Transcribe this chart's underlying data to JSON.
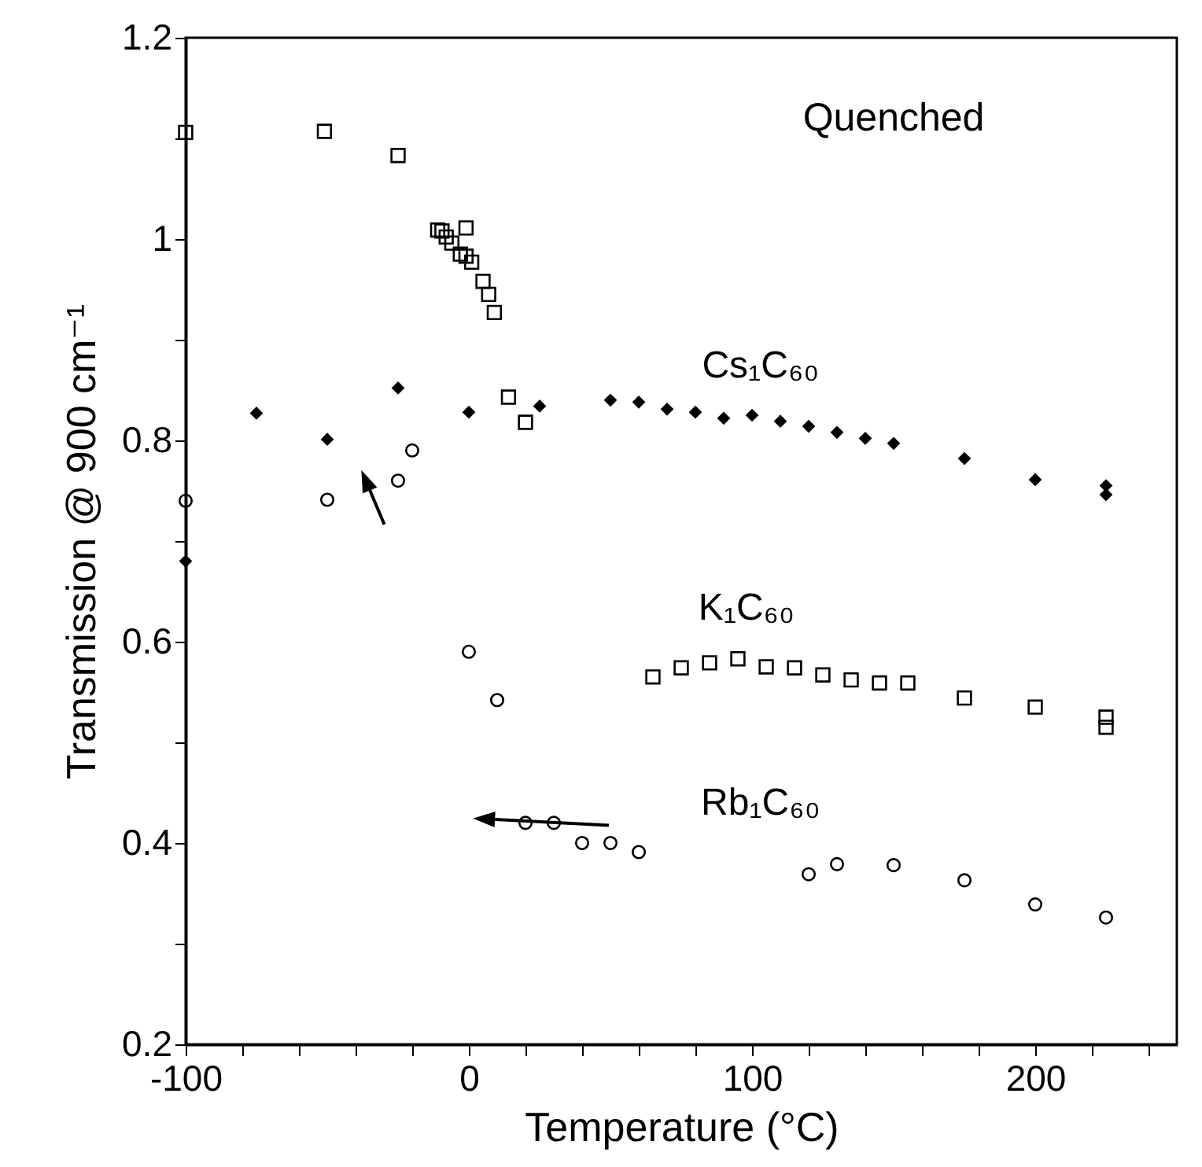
{
  "chart_data": {
    "type": "scatter",
    "xlabel": "Temperature (°C)",
    "ylabel": "Transmission @ 900 cm⁻¹",
    "annotations": [
      "Quenched"
    ],
    "xlim": [
      -100,
      250
    ],
    "ylim": [
      0.2,
      1.2
    ],
    "xticks": [
      -100,
      {
        "value": -80,
        "label": null
      },
      {
        "value": -60,
        "label": null
      },
      {
        "value": -40,
        "label": null
      },
      {
        "value": -20,
        "label": null
      },
      0,
      {
        "value": 20,
        "label": null
      },
      {
        "value": 40,
        "label": null
      },
      {
        "value": 60,
        "label": null
      },
      {
        "value": 80,
        "label": null
      },
      100,
      {
        "value": 120,
        "label": null
      },
      {
        "value": 140,
        "label": null
      },
      {
        "value": 160,
        "label": null
      },
      {
        "value": 180,
        "label": null
      },
      200,
      {
        "value": 220,
        "label": null
      },
      {
        "value": 240,
        "label": null
      }
    ],
    "yticks": [
      0.2,
      {
        "value": 0.3,
        "label": null
      },
      0.4,
      {
        "value": 0.5,
        "label": null
      },
      0.6,
      {
        "value": 0.7,
        "label": null
      },
      0.8,
      {
        "value": 0.9,
        "label": null
      },
      1,
      {
        "value": 1.1,
        "label": null
      },
      1.2
    ],
    "series": [
      {
        "name": "Cs₁C₆₀",
        "color": "#000000",
        "marker": "diamond",
        "x": [
          -100,
          -75,
          -50,
          -25,
          0,
          25,
          50,
          60,
          70,
          80,
          90,
          100,
          110,
          120,
          130,
          140,
          150,
          175,
          200,
          225,
          225
        ],
        "values": [
          0.68,
          0.827,
          0.801,
          0.852,
          0.828,
          0.834,
          0.84,
          0.838,
          0.831,
          0.828,
          0.822,
          0.825,
          0.819,
          0.814,
          0.808,
          0.802,
          0.797,
          0.782,
          0.761,
          0.755,
          0.746
        ]
      },
      {
        "name": "K₁C₆₀",
        "color": "#000000",
        "marker": "square",
        "x": [
          -100,
          -51,
          -25,
          -11,
          -9.5,
          -8,
          -6,
          -1,
          -3,
          -1,
          1,
          5,
          7,
          9,
          14,
          20,
          65,
          75,
          85,
          95,
          105,
          115,
          125,
          135,
          145,
          155,
          175,
          200,
          225,
          225
        ],
        "values": [
          1.106,
          1.107,
          1.083,
          1.009,
          1.008,
          1.002,
          0.996,
          1.011,
          0.985,
          0.983,
          0.977,
          0.958,
          0.945,
          0.927,
          0.843,
          0.818,
          0.565,
          0.574,
          0.579,
          0.583,
          0.575,
          0.574,
          0.567,
          0.562,
          0.559,
          0.559,
          0.544,
          0.535,
          0.525,
          0.515
        ]
      },
      {
        "name": "Rb₁C₆₀",
        "color": "#000000",
        "marker": "circle",
        "x": [
          -100,
          -50,
          -25,
          -20,
          0,
          10,
          20,
          30,
          40,
          50,
          60,
          120,
          130,
          150,
          175,
          200,
          225
        ],
        "values": [
          0.74,
          0.741,
          0.76,
          0.79,
          0.59,
          0.542,
          0.42,
          0.42,
          0.4,
          0.4,
          0.391,
          0.369,
          0.379,
          0.378,
          0.363,
          0.339,
          0.326
        ]
      }
    ]
  }
}
